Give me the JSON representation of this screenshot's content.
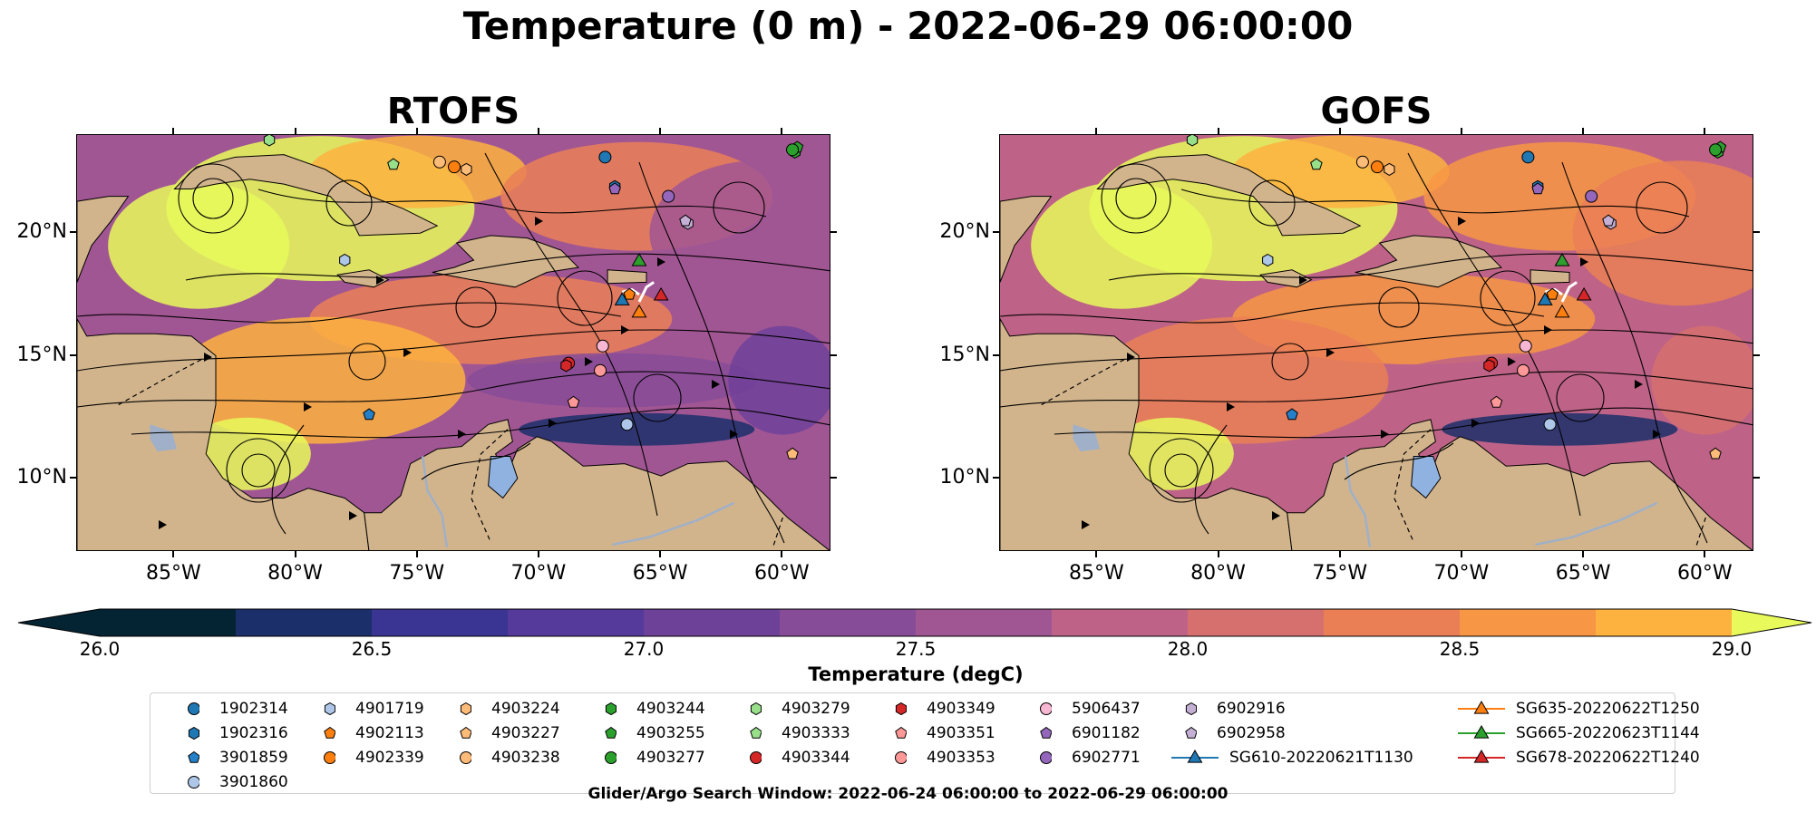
{
  "title": "Temperature (0 m) - 2022-06-29 06:00:00",
  "panels": [
    {
      "title": "RTOFS"
    },
    {
      "title": "GOFS"
    }
  ],
  "map": {
    "lat_ticks": [
      {
        "value": 20,
        "label": "20°N"
      },
      {
        "value": 15,
        "label": "15°N"
      },
      {
        "value": 10,
        "label": "10°N"
      }
    ],
    "lon_ticks": [
      {
        "value": -85,
        "label": "85°W"
      },
      {
        "value": -80,
        "label": "80°W"
      },
      {
        "value": -75,
        "label": "75°W"
      },
      {
        "value": -70,
        "label": "70°W"
      },
      {
        "value": -65,
        "label": "65°W"
      },
      {
        "value": -60,
        "label": "60°W"
      }
    ],
    "extent": {
      "lon": [
        -89,
        -58
      ],
      "lat": [
        7,
        24
      ]
    },
    "land_color": "#d2b48c",
    "lake_color": "#8fb2e0",
    "river_color": "#9fb0c8"
  },
  "chart_data": {
    "type": "heatmap",
    "variable": "Temperature",
    "depth": "0 m",
    "colorbar": {
      "label": "Temperature (degC)",
      "min": 26.0,
      "max": 29.0,
      "step": 0.25,
      "extend": "both",
      "tick_values": [
        26.0,
        26.5,
        27.0,
        27.5,
        28.0,
        28.5,
        29.0
      ],
      "tick_labels": [
        "26.0",
        "26.5",
        "27.0",
        "27.5",
        "28.0",
        "28.5",
        "29.0"
      ],
      "colors": [
        "#042333",
        "#1b2f6a",
        "#3a3593",
        "#55399b",
        "#6e4199",
        "#874c97",
        "#a15694",
        "#be6387",
        "#d6706f",
        "#ea7f56",
        "#f79644",
        "#fdb23f",
        "#f7cf4a"
      ],
      "under_color": "#042333",
      "over_color": "#e8fa5b"
    },
    "search_window": "Glider/Argo Search Window: 2022-06-24 06:00:00 to 2022-06-29 06:00:00",
    "floats": [
      {
        "id": "1902314",
        "marker": "circle",
        "color": "#1f77b4",
        "lon": -67.3,
        "lat": 23.1
      },
      {
        "id": "1902316",
        "marker": "hexagon",
        "color": "#1f77b4",
        "lon": -66.9,
        "lat": 21.9
      },
      {
        "id": "3901859",
        "marker": "pentagon",
        "color": "#2480c8",
        "lon": -77.0,
        "lat": 12.6
      },
      {
        "id": "3901860",
        "marker": "circle",
        "color": "#aec7e8",
        "lon": -66.4,
        "lat": 12.2
      },
      {
        "id": "4901719",
        "marker": "hexagon",
        "color": "#aec7e8",
        "lon": -78.0,
        "lat": 18.9
      },
      {
        "id": "4902113",
        "marker": "pentagon",
        "color": "#ff7f0e",
        "lon": -66.3,
        "lat": 17.5
      },
      {
        "id": "4902339",
        "marker": "circle",
        "color": "#ff7f0e",
        "lon": -73.5,
        "lat": 22.7
      },
      {
        "id": "4903224",
        "marker": "hexagon",
        "color": "#ffbb78",
        "lon": -73.0,
        "lat": 22.6
      },
      {
        "id": "4903227",
        "marker": "pentagon",
        "color": "#ffbb78",
        "lon": -59.6,
        "lat": 11.0
      },
      {
        "id": "4903238",
        "marker": "circle",
        "color": "#ffbb78",
        "lon": -74.1,
        "lat": 22.9
      },
      {
        "id": "4903244",
        "marker": "hexagon",
        "color": "#2ca02c",
        "lon": -59.5,
        "lat": 23.3
      },
      {
        "id": "4903255",
        "marker": "pentagon",
        "color": "#2ca02c",
        "lon": -59.4,
        "lat": 23.5
      },
      {
        "id": "4903277",
        "marker": "circle",
        "color": "#2ca02c",
        "lon": -59.6,
        "lat": 23.4
      },
      {
        "id": "4903279",
        "marker": "hexagon",
        "color": "#98df8a",
        "lon": -81.1,
        "lat": 23.8
      },
      {
        "id": "4903333",
        "marker": "pentagon",
        "color": "#98df8a",
        "lon": -76.0,
        "lat": 22.8
      },
      {
        "id": "4903344",
        "marker": "circle",
        "color": "#d62728",
        "lon": -68.8,
        "lat": 14.7
      },
      {
        "id": "4903349",
        "marker": "hexagon",
        "color": "#d62728",
        "lon": -68.9,
        "lat": 14.6
      },
      {
        "id": "4903351",
        "marker": "pentagon",
        "color": "#ff9896",
        "lon": -68.6,
        "lat": 13.1
      },
      {
        "id": "4903353",
        "marker": "circle",
        "color": "#ff9896",
        "lon": -67.5,
        "lat": 14.4
      },
      {
        "id": "5906437",
        "marker": "circle",
        "color": "#f7b6d2",
        "lon": -67.4,
        "lat": 15.4
      },
      {
        "id": "6901182",
        "marker": "pentagon",
        "color": "#9467bd",
        "lon": -66.9,
        "lat": 21.8
      },
      {
        "id": "6902771",
        "marker": "circle",
        "color": "#9467bd",
        "lon": -64.7,
        "lat": 21.5
      },
      {
        "id": "6902916",
        "marker": "hexagon",
        "color": "#c5b0d5",
        "lon": -63.9,
        "lat": 20.4
      },
      {
        "id": "6902958",
        "marker": "pentagon",
        "color": "#c5b0d5",
        "lon": -64.0,
        "lat": 20.5
      }
    ],
    "gliders": [
      {
        "id": "SG610-20220621T1130",
        "marker": "triangle",
        "color": "#1f77b4",
        "lon": -66.6,
        "lat": 17.3
      },
      {
        "id": "SG635-20220622T1250",
        "marker": "triangle",
        "color": "#ff7f0e",
        "lon": -65.9,
        "lat": 16.8
      },
      {
        "id": "SG665-20220623T1144",
        "marker": "triangle",
        "color": "#2ca02c",
        "lon": -65.9,
        "lat": 18.9
      },
      {
        "id": "SG678-20220622T1240",
        "marker": "triangle",
        "color": "#d62728",
        "lon": -65.0,
        "lat": 17.5
      }
    ]
  },
  "legend_order": [
    "1902314",
    "1902316",
    "3901859",
    "3901860",
    "4901719",
    "4902113",
    "4902339",
    "4903224",
    "4903227",
    "4903238",
    "4903244",
    "4903255",
    "4903277",
    "4903279",
    "4903333",
    "4903344",
    "4903349",
    "4903351",
    "4903353",
    "5906437",
    "6901182",
    "6902771",
    "6902916",
    "6902958",
    "SG610-20220621T1130",
    "SG635-20220622T1250",
    "SG665-20220623T1144",
    "SG678-20220622T1240"
  ]
}
